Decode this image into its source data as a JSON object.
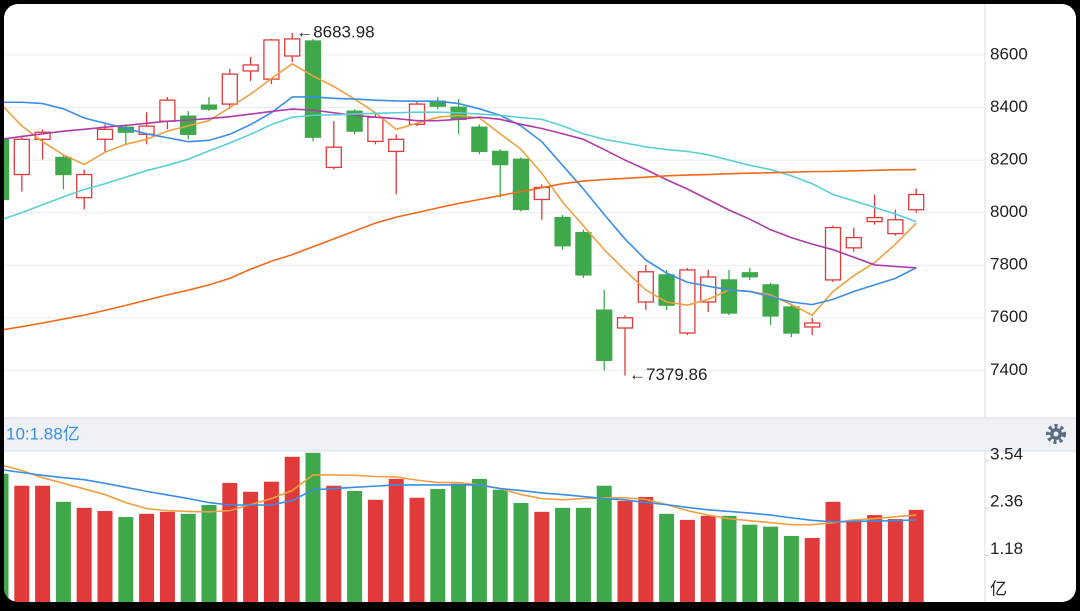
{
  "chart_data": [
    {
      "type": "candlestick",
      "open": [
        8279,
        8145,
        8279,
        8210,
        8057,
        8279,
        8325,
        8298,
        8348,
        8367,
        8409,
        8413,
        8539,
        8508,
        8596,
        8653,
        8172,
        8386,
        8271,
        8233,
        8336,
        8424,
        8401,
        8325,
        8233,
        8203,
        8050,
        7981,
        7924,
        7629,
        7561,
        7660,
        7763,
        7542,
        7660,
        7744,
        7771,
        7725,
        7641,
        7565,
        7744,
        7866,
        7966,
        7920,
        8011
      ],
      "high": [
        8290,
        8287,
        8317,
        8222,
        8164,
        8336,
        8336,
        8382,
        8440,
        8386,
        8440,
        8547,
        8592,
        8661,
        8683.98,
        8661,
        8348,
        8394,
        8375,
        8298,
        8424,
        8440,
        8432,
        8336,
        8241,
        8210,
        8107,
        7992,
        7935,
        7706,
        7610,
        7801,
        7782,
        7790,
        7782,
        7782,
        7790,
        7733,
        7648,
        7599,
        7951,
        7943,
        8069,
        8012,
        8092
      ],
      "low": [
        8040,
        8080,
        8203,
        8088,
        8012,
        8233,
        8260,
        8260,
        8317,
        8279,
        8386,
        8394,
        8501,
        8489,
        8573,
        8271,
        8164,
        8298,
        8260,
        8069,
        8329,
        8394,
        8298,
        8222,
        8057,
        8004,
        7973,
        7859,
        7752,
        7400,
        7379.86,
        7630,
        7629,
        7534,
        7622,
        7610,
        7744,
        7572,
        7526,
        7534,
        7736,
        7851,
        7954,
        7912,
        8000
      ],
      "close": [
        8050,
        8279,
        8306,
        8145,
        8145,
        8317,
        8306,
        8329,
        8428,
        8298,
        8394,
        8527,
        8562,
        8657,
        8661,
        8287,
        8249,
        8310,
        8363,
        8279,
        8413,
        8405,
        8355,
        8233,
        8183,
        8012,
        8096,
        7874,
        7763,
        7438,
        7600,
        7775,
        7648,
        7782,
        7755,
        7618,
        7756,
        7607,
        7542,
        7580,
        7943,
        7905,
        7981,
        7973,
        8069
      ],
      "series": [
        {
          "color": "#f0a040",
          "values": [
            8413,
            8330,
            8270,
            8220,
            8183,
            8230,
            8260,
            8279,
            8310,
            8330,
            8350,
            8400,
            8451,
            8510,
            8566,
            8520,
            8480,
            8432,
            8380,
            8317,
            8340,
            8363,
            8370,
            8360,
            8300,
            8241,
            8150,
            8040,
            7950,
            7859,
            7780,
            7706,
            7660,
            7648,
            7670,
            7706,
            7700,
            7687,
            7650,
            7610,
            7700,
            7760,
            7810,
            7880,
            7960
          ]
        },
        {
          "color": "#3a8ee6",
          "values": [
            8420,
            8420,
            8415,
            8395,
            8360,
            8340,
            8320,
            8300,
            8285,
            8270,
            8275,
            8298,
            8335,
            8380,
            8440,
            8440,
            8435,
            8432,
            8428,
            8425,
            8424,
            8424,
            8415,
            8395,
            8370,
            8330,
            8270,
            8180,
            8090,
            7993,
            7900,
            7820,
            7770,
            7735,
            7720,
            7706,
            7700,
            7680,
            7660,
            7650,
            7670,
            7700,
            7725,
            7750,
            7790
          ]
        },
        {
          "color": "#b03aa8",
          "values": [
            8279,
            8290,
            8300,
            8310,
            8317,
            8325,
            8332,
            8340,
            8348,
            8352,
            8358,
            8365,
            8375,
            8385,
            8394,
            8390,
            8380,
            8370,
            8363,
            8358,
            8350,
            8350,
            8355,
            8363,
            8355,
            8336,
            8320,
            8300,
            8279,
            8240,
            8200,
            8164,
            8125,
            8090,
            8050,
            8010,
            7975,
            7935,
            7905,
            7880,
            7859,
            7830,
            7801,
            7795,
            7790
          ]
        },
        {
          "color": "#5bcfd6",
          "values": [
            7973,
            8000,
            8030,
            8060,
            8088,
            8110,
            8135,
            8160,
            8180,
            8203,
            8235,
            8265,
            8298,
            8335,
            8363,
            8370,
            8372,
            8375,
            8378,
            8380,
            8382,
            8382,
            8380,
            8375,
            8370,
            8362,
            8355,
            8330,
            8300,
            8279,
            8265,
            8250,
            8240,
            8233,
            8220,
            8200,
            8180,
            8164,
            8140,
            8110,
            8069,
            8045,
            8020,
            7995,
            7966
          ]
        },
        {
          "color": "#f06a1c",
          "values": [
            7553,
            7566,
            7580,
            7595,
            7610,
            7628,
            7647,
            7667,
            7687,
            7705,
            7725,
            7750,
            7785,
            7815,
            7840,
            7870,
            7900,
            7930,
            7960,
            7983,
            8000,
            8018,
            8035,
            8050,
            8065,
            8080,
            8095,
            8110,
            8120,
            8126,
            8130,
            8135,
            8140,
            8143,
            8145,
            8148,
            8150,
            8152,
            8154,
            8156,
            8157,
            8159,
            8161,
            8163,
            8164
          ]
        }
      ],
      "up_color": "#e03a3a",
      "down_color": "#3ea84b",
      "ylim": [
        7230,
        8790
      ],
      "yticks": [
        7400,
        7600,
        7800,
        8000,
        8200,
        8400,
        8600
      ],
      "grid": true,
      "annotations": [
        {
          "text": "←8683.98",
          "at": "high"
        },
        {
          "text": "←7379.86",
          "at": "low"
        }
      ]
    },
    {
      "type": "bar",
      "header": "10:1.88亿",
      "unit": "亿",
      "values": [
        3.22,
        2.92,
        2.92,
        2.52,
        2.37,
        2.29,
        2.14,
        2.22,
        2.27,
        2.22,
        2.44,
        2.99,
        2.77,
        3.02,
        3.64,
        3.74,
        2.92,
        2.79,
        2.57,
        3.09,
        2.62,
        2.84,
        2.97,
        3.09,
        2.82,
        2.49,
        2.27,
        2.37,
        2.37,
        2.92,
        2.54,
        2.64,
        2.22,
        2.07,
        2.17,
        2.17,
        1.95,
        1.9,
        1.67,
        1.62,
        2.52,
        2.07,
        2.19,
        2.09,
        2.32
      ],
      "colors": [
        "#3ea84b",
        "#e03a3a",
        "#e03a3a",
        "#3ea84b",
        "#e03a3a",
        "#e03a3a",
        "#3ea84b",
        "#e03a3a",
        "#e03a3a",
        "#3ea84b",
        "#3ea84b",
        "#e03a3a",
        "#e03a3a",
        "#e03a3a",
        "#e03a3a",
        "#3ea84b",
        "#e03a3a",
        "#3ea84b",
        "#e03a3a",
        "#e03a3a",
        "#e03a3a",
        "#3ea84b",
        "#3ea84b",
        "#3ea84b",
        "#3ea84b",
        "#3ea84b",
        "#e03a3a",
        "#3ea84b",
        "#3ea84b",
        "#3ea84b",
        "#e03a3a",
        "#e03a3a",
        "#3ea84b",
        "#e03a3a",
        "#e03a3a",
        "#3ea84b",
        "#3ea84b",
        "#3ea84b",
        "#3ea84b",
        "#e03a3a",
        "#e03a3a",
        "#e03a3a",
        "#e03a3a",
        "#e03a3a",
        "#e03a3a"
      ],
      "series": [
        {
          "color": "#f0a040",
          "values": [
            3.44,
            3.3,
            3.12,
            2.98,
            2.84,
            2.7,
            2.5,
            2.35,
            2.3,
            2.28,
            2.27,
            2.3,
            2.45,
            2.6,
            2.8,
            3.19,
            3.19,
            3.18,
            3.15,
            3.14,
            3.06,
            3.0,
            3.0,
            2.94,
            2.85,
            2.7,
            2.6,
            2.57,
            2.6,
            2.62,
            2.62,
            2.58,
            2.45,
            2.3,
            2.19,
            2.1,
            2.05,
            2.0,
            1.95,
            1.95,
            2.0,
            2.07,
            2.1,
            2.15,
            2.19
          ]
        },
        {
          "color": "#3a8ee6",
          "values": [
            3.32,
            3.25,
            3.18,
            3.12,
            3.07,
            2.98,
            2.88,
            2.78,
            2.69,
            2.6,
            2.5,
            2.44,
            2.44,
            2.44,
            2.55,
            2.82,
            2.85,
            2.88,
            2.91,
            2.94,
            2.94,
            2.94,
            2.94,
            2.94,
            2.85,
            2.8,
            2.74,
            2.7,
            2.65,
            2.6,
            2.57,
            2.5,
            2.45,
            2.38,
            2.32,
            2.28,
            2.24,
            2.19,
            2.12,
            2.06,
            2.02,
            2.03,
            2.04,
            2.05,
            2.07
          ]
        }
      ],
      "ylim": [
        0,
        3.76
      ],
      "yticks": [
        1.18,
        2.36,
        3.54
      ]
    }
  ]
}
